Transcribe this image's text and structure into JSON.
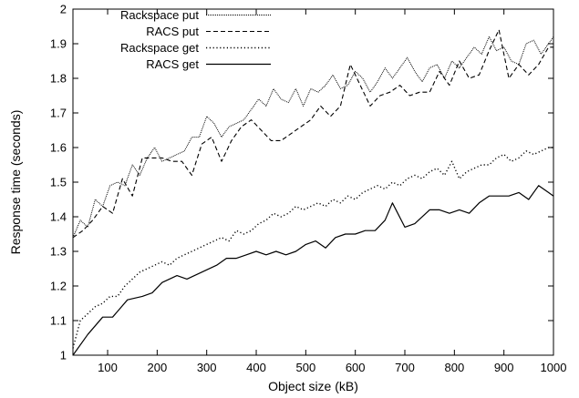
{
  "chart_data": {
    "type": "line",
    "xlabel": "Object size (kB)",
    "ylabel": "Response time (seconds)",
    "xlim": [
      30,
      1000
    ],
    "ylim": [
      1,
      2
    ],
    "x_ticks": [
      100,
      200,
      300,
      400,
      500,
      600,
      700,
      800,
      900,
      1000
    ],
    "y_ticks": [
      1,
      1.1,
      1.2,
      1.3,
      1.4,
      1.5,
      1.6,
      1.7,
      1.8,
      1.9,
      2
    ],
    "grid": false,
    "legend_position": "top-left",
    "series": [
      {
        "name": "Rackspace put",
        "style": "dotted-fine",
        "x": [
          30,
          45,
          60,
          75,
          90,
          105,
          120,
          135,
          150,
          165,
          180,
          195,
          210,
          225,
          240,
          255,
          270,
          285,
          300,
          315,
          330,
          345,
          360,
          375,
          390,
          405,
          420,
          435,
          450,
          465,
          480,
          495,
          510,
          525,
          540,
          555,
          570,
          585,
          600,
          615,
          630,
          645,
          660,
          675,
          690,
          705,
          720,
          735,
          750,
          765,
          780,
          795,
          810,
          825,
          840,
          855,
          870,
          885,
          900,
          915,
          930,
          945,
          960,
          975,
          990,
          1000
        ],
        "values": [
          1.34,
          1.39,
          1.37,
          1.45,
          1.43,
          1.49,
          1.5,
          1.49,
          1.55,
          1.52,
          1.57,
          1.6,
          1.56,
          1.57,
          1.58,
          1.59,
          1.63,
          1.63,
          1.69,
          1.67,
          1.63,
          1.66,
          1.67,
          1.68,
          1.71,
          1.74,
          1.72,
          1.77,
          1.74,
          1.73,
          1.77,
          1.72,
          1.77,
          1.76,
          1.78,
          1.81,
          1.77,
          1.78,
          1.82,
          1.8,
          1.76,
          1.79,
          1.83,
          1.8,
          1.83,
          1.86,
          1.82,
          1.79,
          1.83,
          1.84,
          1.8,
          1.85,
          1.83,
          1.86,
          1.89,
          1.87,
          1.92,
          1.88,
          1.89,
          1.85,
          1.84,
          1.9,
          1.91,
          1.87,
          1.9,
          1.92
        ]
      },
      {
        "name": "RACS put",
        "style": "dashed",
        "x": [
          30,
          50,
          70,
          90,
          110,
          130,
          150,
          170,
          190,
          210,
          230,
          250,
          270,
          290,
          310,
          330,
          350,
          370,
          390,
          410,
          430,
          450,
          470,
          490,
          510,
          530,
          550,
          570,
          590,
          610,
          630,
          650,
          670,
          690,
          710,
          730,
          750,
          770,
          790,
          810,
          830,
          850,
          870,
          890,
          910,
          930,
          950,
          970,
          990,
          1000
        ],
        "values": [
          1.34,
          1.36,
          1.39,
          1.43,
          1.41,
          1.51,
          1.46,
          1.57,
          1.57,
          1.57,
          1.56,
          1.56,
          1.52,
          1.61,
          1.63,
          1.56,
          1.62,
          1.66,
          1.68,
          1.65,
          1.62,
          1.62,
          1.64,
          1.66,
          1.68,
          1.72,
          1.69,
          1.72,
          1.84,
          1.78,
          1.72,
          1.75,
          1.76,
          1.78,
          1.75,
          1.76,
          1.76,
          1.82,
          1.78,
          1.85,
          1.8,
          1.81,
          1.88,
          1.94,
          1.8,
          1.84,
          1.81,
          1.84,
          1.89,
          1.89
        ]
      },
      {
        "name": "Rackspace get",
        "style": "dotted",
        "x": [
          30,
          45,
          60,
          75,
          90,
          105,
          120,
          135,
          150,
          165,
          180,
          195,
          210,
          225,
          240,
          255,
          270,
          285,
          300,
          315,
          330,
          345,
          360,
          375,
          390,
          405,
          420,
          435,
          450,
          465,
          480,
          495,
          510,
          525,
          540,
          555,
          570,
          585,
          600,
          615,
          630,
          645,
          660,
          675,
          690,
          705,
          720,
          735,
          750,
          765,
          780,
          795,
          810,
          825,
          840,
          855,
          870,
          885,
          900,
          915,
          930,
          945,
          960,
          975,
          990,
          1000
        ],
        "values": [
          1.02,
          1.1,
          1.12,
          1.14,
          1.15,
          1.17,
          1.17,
          1.2,
          1.22,
          1.24,
          1.25,
          1.26,
          1.27,
          1.26,
          1.28,
          1.29,
          1.3,
          1.31,
          1.32,
          1.33,
          1.34,
          1.33,
          1.36,
          1.35,
          1.36,
          1.38,
          1.39,
          1.41,
          1.4,
          1.41,
          1.43,
          1.42,
          1.43,
          1.44,
          1.43,
          1.45,
          1.44,
          1.46,
          1.45,
          1.47,
          1.48,
          1.49,
          1.48,
          1.5,
          1.49,
          1.51,
          1.52,
          1.51,
          1.53,
          1.54,
          1.52,
          1.56,
          1.51,
          1.53,
          1.54,
          1.55,
          1.55,
          1.57,
          1.58,
          1.56,
          1.57,
          1.59,
          1.58,
          1.59,
          1.6,
          1.6
        ]
      },
      {
        "name": "RACS get",
        "style": "solid",
        "x": [
          30,
          60,
          90,
          110,
          140,
          170,
          190,
          210,
          240,
          260,
          290,
          320,
          340,
          360,
          380,
          400,
          420,
          440,
          460,
          480,
          500,
          520,
          540,
          560,
          580,
          600,
          620,
          640,
          660,
          675,
          700,
          720,
          750,
          770,
          790,
          810,
          830,
          850,
          870,
          890,
          910,
          930,
          950,
          970,
          990,
          1000
        ],
        "values": [
          1.0,
          1.06,
          1.11,
          1.11,
          1.16,
          1.17,
          1.18,
          1.21,
          1.23,
          1.22,
          1.24,
          1.26,
          1.28,
          1.28,
          1.29,
          1.3,
          1.29,
          1.3,
          1.29,
          1.3,
          1.32,
          1.33,
          1.31,
          1.34,
          1.35,
          1.35,
          1.36,
          1.36,
          1.39,
          1.44,
          1.37,
          1.38,
          1.42,
          1.42,
          1.41,
          1.42,
          1.41,
          1.44,
          1.46,
          1.46,
          1.46,
          1.47,
          1.45,
          1.49,
          1.47,
          1.46
        ]
      }
    ]
  }
}
